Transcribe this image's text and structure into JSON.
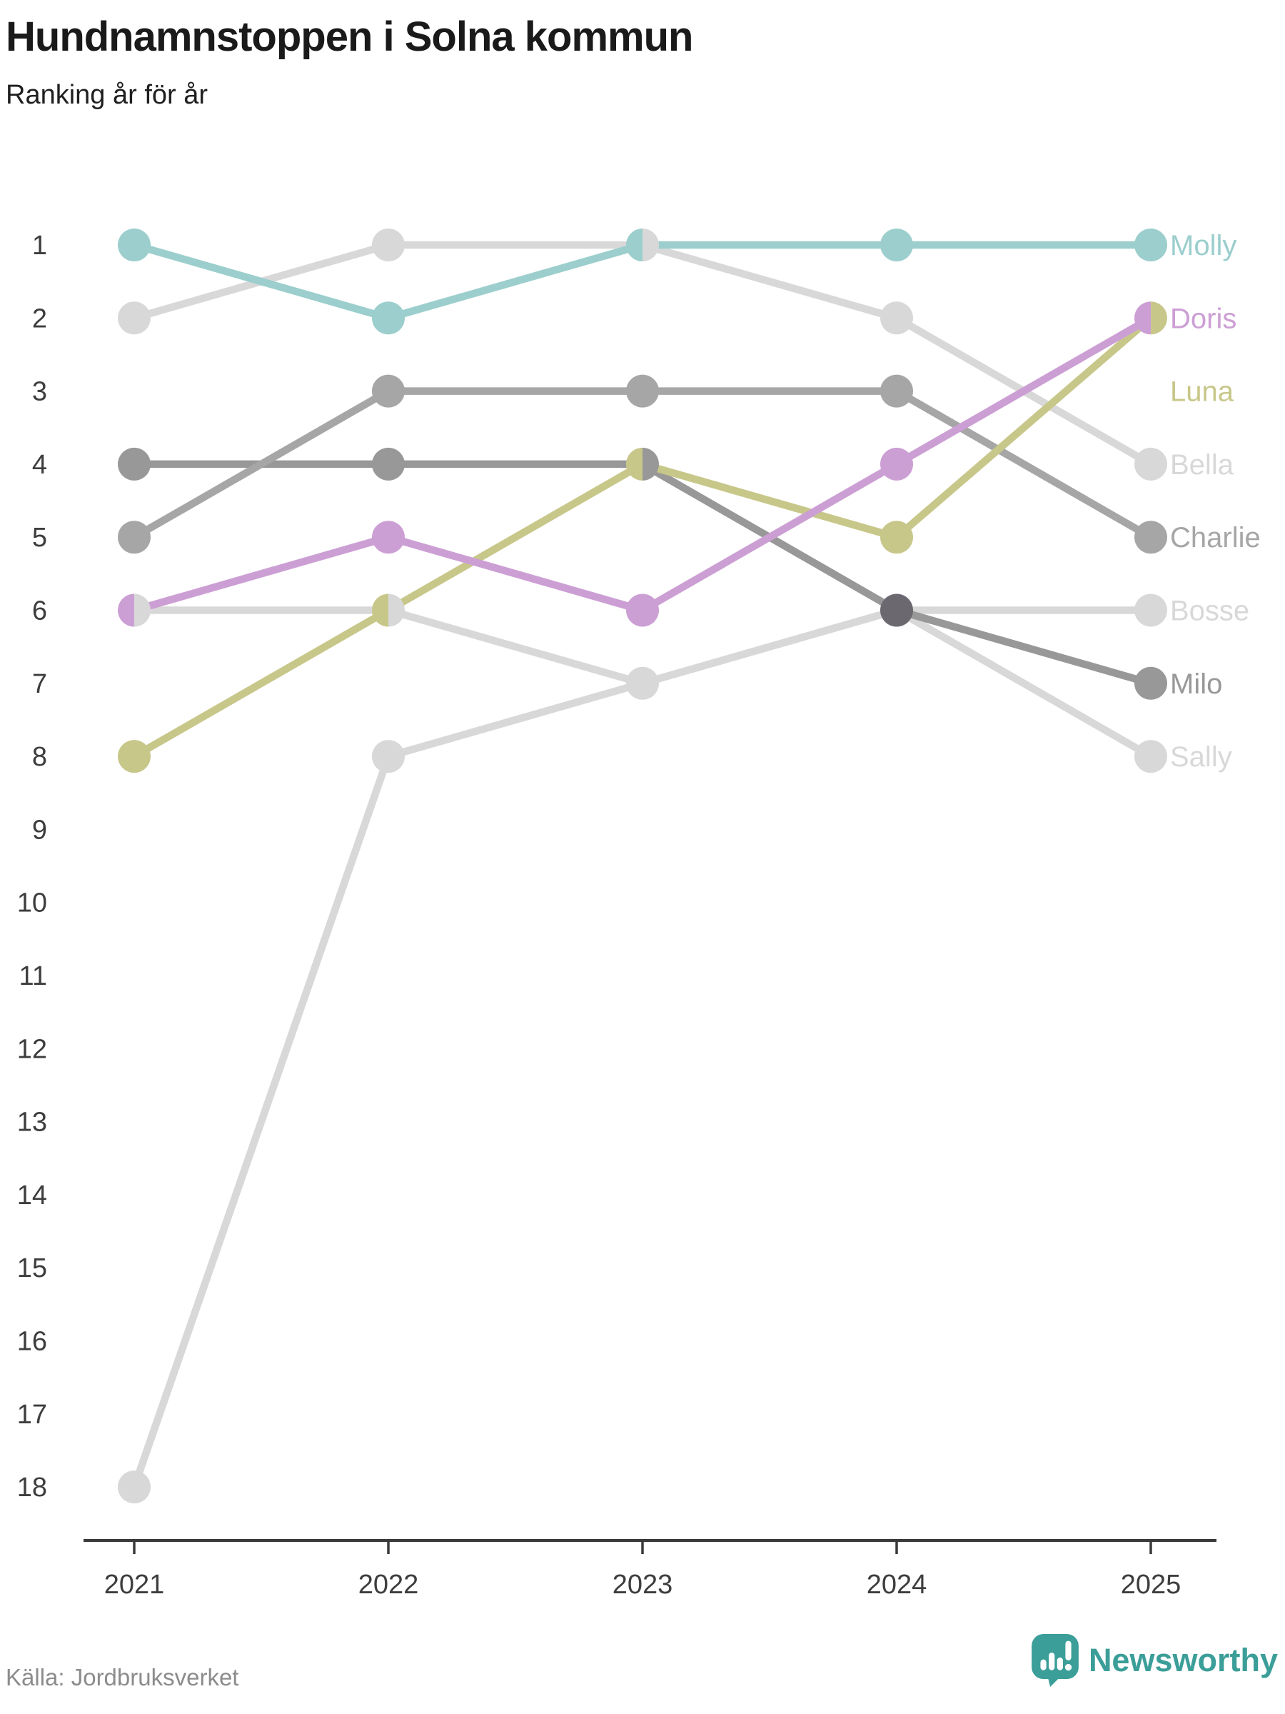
{
  "title": "Hundnamnstoppen i Solna kommun",
  "subtitle": "Ranking år för år",
  "footer": {
    "source": "Källa: Jordbruksverket",
    "brand": "Newsworthy"
  },
  "colors": {
    "brand_teal": "#3b9e98",
    "axis": "#3a3a3a",
    "tick_text": "#3d3d3d",
    "tie_dark": "#6b6870"
  },
  "chart_data": {
    "type": "line",
    "variant": "bump-ranking-chart",
    "title": "Hundnamnstoppen i Solna kommun",
    "subtitle": "Ranking år för år",
    "x": [
      "2021",
      "2022",
      "2023",
      "2024",
      "2025"
    ],
    "xlabel": "",
    "ylabel": "",
    "y_inverted": true,
    "ylim": [
      1,
      18
    ],
    "yticks": [
      1,
      2,
      3,
      4,
      5,
      6,
      7,
      8,
      9,
      10,
      11,
      12,
      13,
      14,
      15,
      16,
      17,
      18
    ],
    "grid": false,
    "legend_position": "right-of-last-point",
    "tie_color": "#6b6870",
    "series": [
      {
        "name": "Molly",
        "color": "#9bcecd",
        "values": [
          1,
          2,
          1,
          1,
          1
        ],
        "label_rank": 1
      },
      {
        "name": "Doris",
        "color": "#cc9fd4",
        "values": [
          6,
          5,
          6,
          4,
          2
        ],
        "label_rank": 2
      },
      {
        "name": "Luna",
        "color": "#c8c78a",
        "values": [
          8,
          6,
          4,
          5,
          2
        ],
        "label_rank": 3
      },
      {
        "name": "Bella",
        "color": "#d8d8d8",
        "values": [
          2,
          1,
          1,
          2,
          4
        ],
        "label_rank": 4
      },
      {
        "name": "Charlie",
        "color": "#a6a6a6",
        "values": [
          5,
          3,
          3,
          3,
          5
        ],
        "label_rank": 5
      },
      {
        "name": "Bosse",
        "color": "#d8d8d8",
        "values": [
          6,
          6,
          7,
          6,
          6
        ],
        "label_rank": 6
      },
      {
        "name": "Milo",
        "color": "#989898",
        "values": [
          4,
          4,
          4,
          6,
          7
        ],
        "label_rank": 7
      },
      {
        "name": "Sally",
        "color": "#d8d8d8",
        "values": [
          18,
          8,
          7,
          6,
          8
        ],
        "label_rank": 8
      }
    ]
  }
}
